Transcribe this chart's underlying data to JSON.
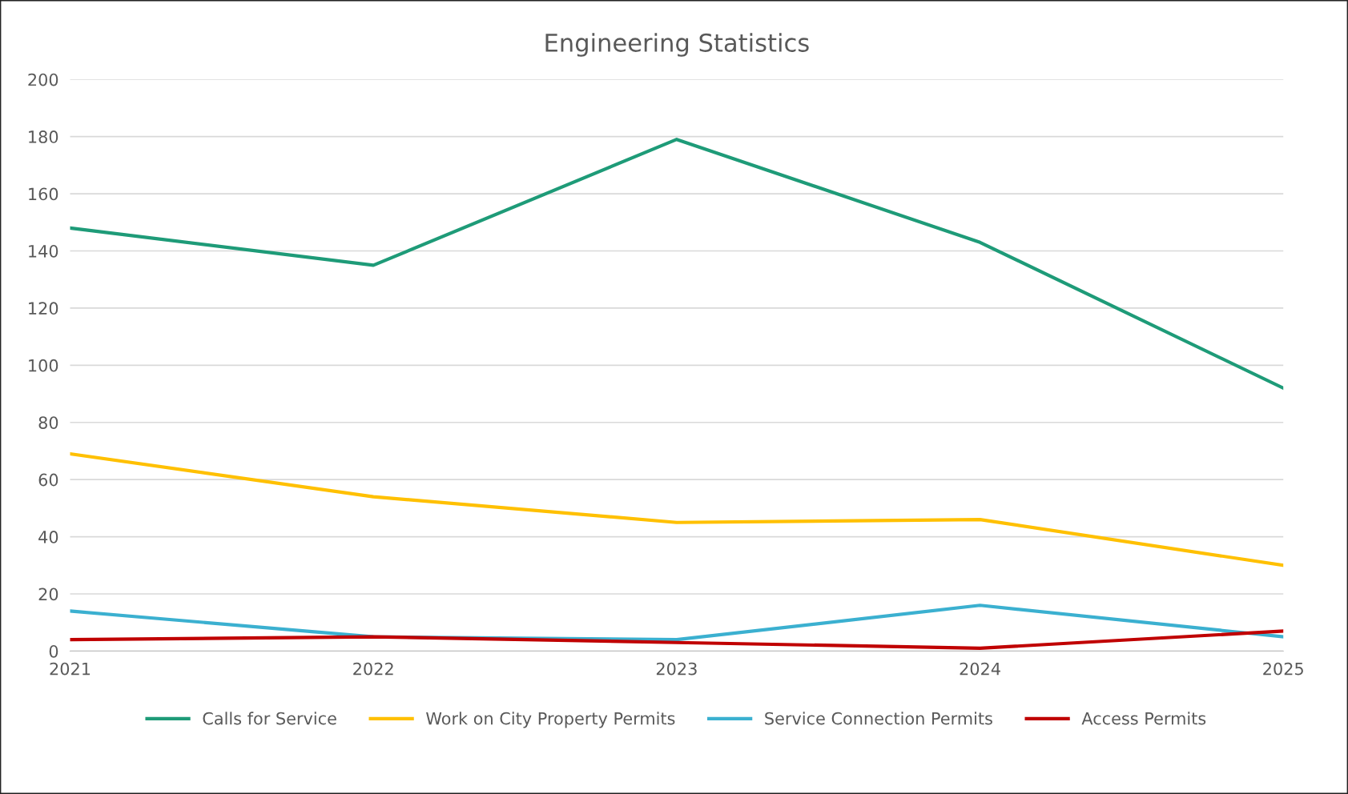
{
  "chart_data": {
    "type": "line",
    "title": "Engineering Statistics",
    "categories": [
      "2021",
      "2022",
      "2023",
      "2024",
      "2025"
    ],
    "series": [
      {
        "name": "Calls for Service",
        "color": "#1e9b78",
        "values": [
          148,
          135,
          179,
          143,
          92
        ]
      },
      {
        "name": "Work on City Property Permits",
        "color": "#ffc000",
        "values": [
          69,
          54,
          45,
          46,
          30
        ]
      },
      {
        "name": "Service Connection Permits",
        "color": "#3bb0d0",
        "values": [
          14,
          5,
          4,
          16,
          5
        ]
      },
      {
        "name": "Access Permits",
        "color": "#c00000",
        "values": [
          4,
          5,
          3,
          1,
          7
        ]
      }
    ],
    "ylim": [
      0,
      200
    ],
    "yticks": [
      0,
      20,
      40,
      60,
      80,
      100,
      120,
      140,
      160,
      180,
      200
    ],
    "grid": "y",
    "legend": "bottom",
    "marker": "none",
    "line_style": "solid"
  }
}
